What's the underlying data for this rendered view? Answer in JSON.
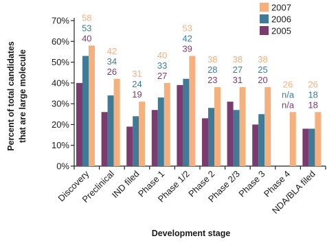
{
  "chart_data": {
    "type": "bar",
    "title": "",
    "xlabel": "Development stage",
    "ylabel_lines": [
      "Percent of total candidates",
      "that are large molecule"
    ],
    "ylim": [
      0,
      70
    ],
    "yticks": [
      "0%",
      "10%",
      "20%",
      "30%",
      "40%",
      "50%",
      "60%",
      "70%"
    ],
    "legend_position": "top-right",
    "categories": [
      "Discovery",
      "Preclinical",
      "IND filed",
      "Phase 1",
      "Phase 1/2",
      "Phase 2",
      "Phase 2/3",
      "Phase 3",
      "Phase 4",
      "NDA/BLA filed"
    ],
    "series": [
      {
        "name": "2005",
        "color": "#7a3b6e",
        "values": [
          40,
          26,
          19,
          27,
          39,
          23,
          31,
          20,
          null,
          18
        ],
        "labels": [
          "40",
          "26",
          "19",
          "27",
          "39",
          "23",
          "31",
          "20",
          "n/a",
          "18"
        ]
      },
      {
        "name": "2006",
        "color": "#3f7a96",
        "values": [
          53,
          34,
          24,
          33,
          42,
          28,
          27,
          25,
          null,
          18
        ],
        "labels": [
          "53",
          "34",
          "24",
          "33",
          "42",
          "28",
          "27",
          "25",
          "n/a",
          "18"
        ]
      },
      {
        "name": "2007",
        "color": "#f5b07e",
        "values": [
          58,
          42,
          31,
          40,
          53,
          38,
          38,
          38,
          26,
          26
        ],
        "labels": [
          "58",
          "42",
          "31",
          "40",
          "53",
          "38",
          "38",
          "38",
          "26",
          "26"
        ]
      }
    ],
    "legend_order": [
      "2007",
      "2006",
      "2005"
    ]
  }
}
